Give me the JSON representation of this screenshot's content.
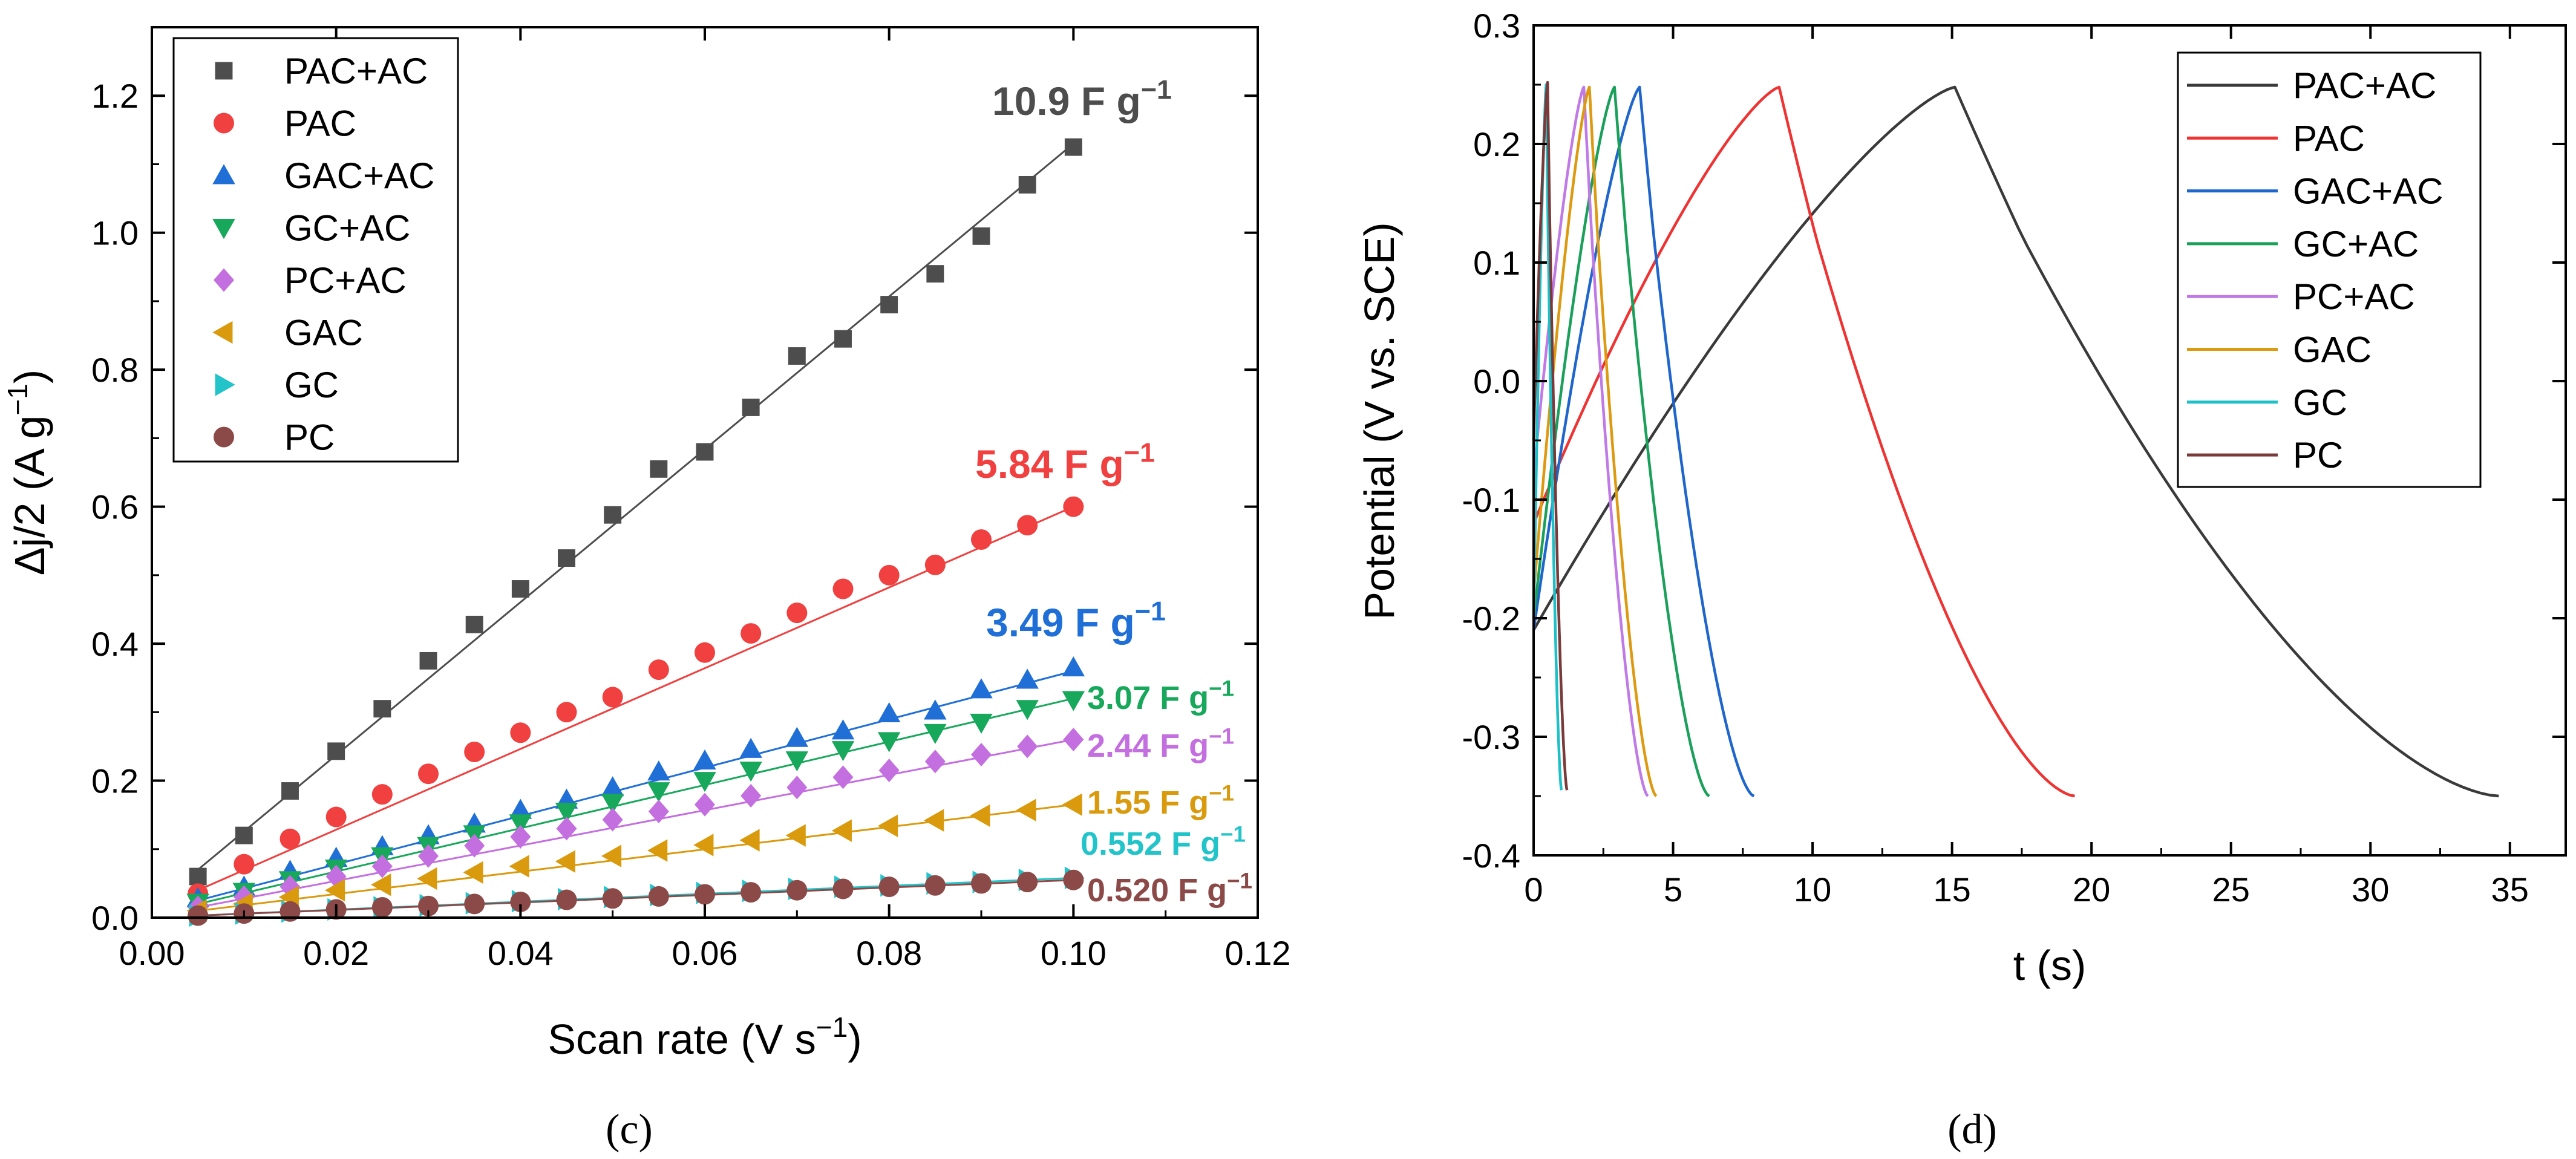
{
  "panels": {
    "c": {
      "caption": "(c)",
      "xlabel": "Scan rate (V s",
      "xlabel_sup": "−1",
      "xlabel_close": ")",
      "ylabel": "Δj/2 (A g",
      "ylabel_sup": "−1",
      "ylabel_close": ")"
    },
    "d": {
      "caption": "(d)",
      "xlabel": "t (s)",
      "ylabel": "Potential (V vs. SCE)"
    }
  },
  "chart_data": [
    {
      "id": "c",
      "type": "scatter",
      "xlim": [
        0.0,
        0.12
      ],
      "ylim": [
        0.0,
        1.3
      ],
      "xticks": [
        0.0,
        0.02,
        0.04,
        0.06,
        0.08,
        0.1,
        0.12
      ],
      "xtick_labels": [
        "0.00",
        "0.02",
        "0.04",
        "0.06",
        "0.08",
        "0.10",
        "0.12"
      ],
      "yticks": [
        0.0,
        0.2,
        0.4,
        0.6,
        0.8,
        1.0,
        1.2
      ],
      "ytick_labels": [
        "0.0",
        "0.2",
        "0.4",
        "0.6",
        "0.8",
        "1.0",
        "1.2"
      ],
      "legend_position": "top-left",
      "x": [
        0.005,
        0.01,
        0.015,
        0.02,
        0.025,
        0.03,
        0.035,
        0.04,
        0.045,
        0.05,
        0.055,
        0.06,
        0.065,
        0.07,
        0.075,
        0.08,
        0.085,
        0.09,
        0.095,
        0.1
      ],
      "series": [
        {
          "name": "PAC+AC",
          "marker": "square",
          "color": "#4d4d4d",
          "label_color": "#4d4d4d",
          "capacitance": "10.9 F g",
          "cap_sup": "−1",
          "fit": [
            0.005,
            0.07,
            0.1,
            1.13
          ],
          "values": [
            0.06,
            0.12,
            0.185,
            0.243,
            0.305,
            0.375,
            0.428,
            0.48,
            0.525,
            0.588,
            0.655,
            0.68,
            0.745,
            0.82,
            0.845,
            0.895,
            0.94,
            0.995,
            1.07,
            1.125
          ]
        },
        {
          "name": "PAC",
          "marker": "circle",
          "color": "#f04040",
          "label_color": "#f04040",
          "capacitance": "5.84 F g",
          "cap_sup": "−1",
          "fit": [
            0.005,
            0.04,
            0.1,
            0.6
          ],
          "values": [
            0.035,
            0.078,
            0.115,
            0.147,
            0.18,
            0.21,
            0.242,
            0.27,
            0.3,
            0.322,
            0.362,
            0.387,
            0.415,
            0.445,
            0.48,
            0.5,
            0.515,
            0.552,
            0.573,
            0.6
          ]
        },
        {
          "name": "GAC+AC",
          "marker": "triangle-up",
          "color": "#1f6fd6",
          "label_color": "#1f6fd6",
          "capacitance": "3.49 F g",
          "cap_sup": "−1",
          "fit": [
            0.005,
            0.025,
            0.1,
            0.36
          ],
          "values": [
            0.028,
            0.045,
            0.068,
            0.087,
            0.104,
            0.12,
            0.137,
            0.157,
            0.172,
            0.19,
            0.213,
            0.229,
            0.246,
            0.262,
            0.273,
            0.298,
            0.302,
            0.333,
            0.347,
            0.365
          ]
        },
        {
          "name": "GC+AC",
          "marker": "triangle-down",
          "color": "#17a85b",
          "label_color": "#17a85b",
          "capacitance": "3.07 F g",
          "cap_sup": "−1",
          "fit": [
            0.005,
            0.02,
            0.1,
            0.32
          ],
          "values": [
            0.022,
            0.038,
            0.055,
            0.072,
            0.09,
            0.105,
            0.122,
            0.138,
            0.155,
            0.168,
            0.185,
            0.2,
            0.215,
            0.23,
            0.245,
            0.258,
            0.27,
            0.285,
            0.305,
            0.318
          ]
        },
        {
          "name": "PC+AC",
          "marker": "diamond",
          "color": "#c46fe0",
          "label_color": "#c46fe0",
          "capacitance": "2.44 F g",
          "cap_sup": "−1",
          "fit": [
            0.005,
            0.015,
            0.1,
            0.26
          ],
          "values": [
            0.015,
            0.03,
            0.045,
            0.06,
            0.075,
            0.09,
            0.105,
            0.118,
            0.13,
            0.143,
            0.155,
            0.165,
            0.178,
            0.19,
            0.205,
            0.215,
            0.228,
            0.238,
            0.25,
            0.26
          ]
        },
        {
          "name": "GAC",
          "marker": "triangle-left",
          "color": "#d99a0e",
          "label_color": "#d99a0e",
          "capacitance": "1.55 F g",
          "cap_sup": "−1",
          "fit": [
            0.005,
            0.01,
            0.1,
            0.165
          ],
          "values": [
            0.01,
            0.02,
            0.03,
            0.04,
            0.048,
            0.057,
            0.066,
            0.075,
            0.082,
            0.09,
            0.098,
            0.106,
            0.113,
            0.12,
            0.127,
            0.134,
            0.142,
            0.149,
            0.157,
            0.165
          ]
        },
        {
          "name": "GC",
          "marker": "triangle-right",
          "color": "#22c4c9",
          "label_color": "#22c4c9",
          "capacitance": "0.552 F g",
          "cap_sup": "−1",
          "fit": [
            0.005,
            0.003,
            0.1,
            0.058
          ],
          "values": [
            0.003,
            0.006,
            0.009,
            0.012,
            0.015,
            0.018,
            0.021,
            0.024,
            0.027,
            0.03,
            0.033,
            0.036,
            0.039,
            0.042,
            0.045,
            0.047,
            0.05,
            0.052,
            0.055,
            0.058
          ]
        },
        {
          "name": "PC",
          "marker": "circle",
          "color": "#8b4a48",
          "label_color": "#8b4a48",
          "capacitance": "0.520 F g",
          "cap_sup": "−1",
          "fit": [
            0.005,
            0.003,
            0.1,
            0.055
          ],
          "values": [
            0.003,
            0.006,
            0.009,
            0.012,
            0.015,
            0.017,
            0.02,
            0.023,
            0.026,
            0.028,
            0.031,
            0.034,
            0.037,
            0.04,
            0.042,
            0.045,
            0.047,
            0.05,
            0.052,
            0.055
          ]
        }
      ]
    },
    {
      "id": "d",
      "type": "line",
      "xlim": [
        0,
        37
      ],
      "ylim": [
        -0.4,
        0.3
      ],
      "xticks": [
        0,
        5,
        10,
        15,
        20,
        25,
        30,
        35
      ],
      "xtick_labels": [
        "0",
        "5",
        "10",
        "15",
        "20",
        "25",
        "30",
        "35"
      ],
      "yticks": [
        -0.4,
        -0.3,
        -0.2,
        -0.1,
        0.0,
        0.1,
        0.2,
        0.3
      ],
      "ytick_labels": [
        "-0.4",
        "-0.3",
        "-0.2",
        "-0.1",
        "0.0",
        "0.1",
        "0.2",
        "0.3"
      ],
      "legend_position": "top-right",
      "series": [
        {
          "name": "PAC+AC",
          "color": "#3a3a3a",
          "v0": -0.21,
          "t_peak": 15.1,
          "v_peak": 0.248,
          "t_end": 34.6,
          "v_end": -0.35
        },
        {
          "name": "PAC",
          "color": "#ee3333",
          "v0": -0.12,
          "t_peak": 8.8,
          "v_peak": 0.248,
          "t_end": 19.4,
          "v_end": -0.35
        },
        {
          "name": "GAC+AC",
          "color": "#1f66cc",
          "v0": -0.21,
          "t_peak": 3.8,
          "v_peak": 0.248,
          "t_end": 7.9,
          "v_end": -0.35
        },
        {
          "name": "GC+AC",
          "color": "#1aa05a",
          "v0": -0.2,
          "t_peak": 2.9,
          "v_peak": 0.248,
          "t_end": 6.3,
          "v_end": -0.35
        },
        {
          "name": "PC+AC",
          "color": "#c07ae6",
          "v0": -0.08,
          "t_peak": 1.8,
          "v_peak": 0.248,
          "t_end": 4.1,
          "v_end": -0.35
        },
        {
          "name": "GAC",
          "color": "#dd9a10",
          "v0": -0.18,
          "t_peak": 2.0,
          "v_peak": 0.248,
          "t_end": 4.4,
          "v_end": -0.35
        },
        {
          "name": "GC",
          "color": "#1ec0c8",
          "v0": -0.2,
          "t_peak": 0.45,
          "v_peak": 0.25,
          "t_end": 1.0,
          "v_end": -0.345
        },
        {
          "name": "PC",
          "color": "#7a3a3a",
          "v0": -0.05,
          "t_peak": 0.5,
          "v_peak": 0.252,
          "t_end": 1.2,
          "v_end": -0.345
        }
      ]
    }
  ]
}
